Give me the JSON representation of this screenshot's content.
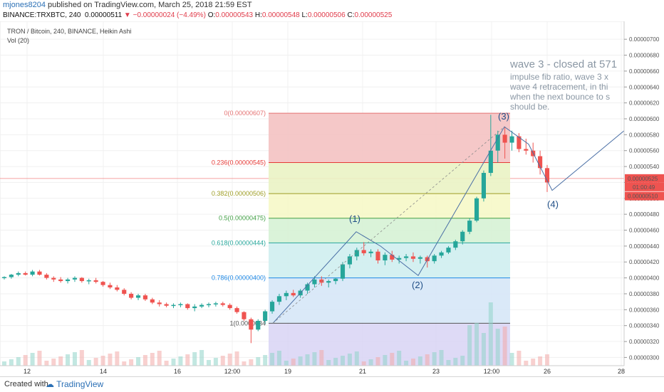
{
  "header": {
    "user": "mjones8204",
    "published": " published on TradingView.com, March 25, 2018 21:59 EST",
    "symbol": "BINANCE:TRXBTC, 240",
    "last": "0.00000511",
    "change": "▼ −0.00000024 (−4.49%)",
    "o_label": "O:",
    "o": "0.00000543",
    "h_label": "H:",
    "h": "0.00000548",
    "l_label": "L:",
    "l": "0.00000506",
    "c_label": "C:",
    "c": "0.00000525"
  },
  "pane": {
    "title": "TRON / Bitcoin, 240, BINANCE, Heikin Ashi",
    "volume": "Vol (20)"
  },
  "footer": {
    "created_with": "Created with",
    "logo": "TradingView"
  },
  "colors": {
    "up": "#26a69a",
    "down": "#ef5350",
    "accent": "#2a6fb5"
  },
  "chart_data": {
    "type": "candlestick",
    "title": "TRON / Bitcoin, 240, BINANCE, Heikin Ashi",
    "ylim": [
      2.95e-06,
      7.1e-06
    ],
    "y_ticks": [
      "0.00000300",
      "0.00000320",
      "0.00000340",
      "0.00000360",
      "0.00000380",
      "0.00000400",
      "0.00000420",
      "0.00000440",
      "0.00000460",
      "0.00000480",
      "0.00000500",
      "0.00000520",
      "0.00000540",
      "0.00000560",
      "0.00000580",
      "0.00000600",
      "0.00000620",
      "0.00000640",
      "0.00000660",
      "0.00000680",
      "0.00000700"
    ],
    "x_ticks": [
      "12",
      "14",
      "16",
      "12:00",
      "19",
      "21",
      "23",
      "12:00",
      "26",
      "28"
    ],
    "price_marker": "0.00000525",
    "countdown": "01:00:49",
    "close_marker": "0.00000510",
    "fib_levels": [
      {
        "label": "0(0.00000607)",
        "value": 607,
        "color": "#e57373"
      },
      {
        "label": "0.236(0.00000545)",
        "value": 545,
        "color": "#e53935"
      },
      {
        "label": "0.382(0.00000506)",
        "value": 506,
        "color": "#9e9d24"
      },
      {
        "label": "0.5(0.00000475)",
        "value": 475,
        "color": "#43a047"
      },
      {
        "label": "0.618(0.00000444)",
        "value": 444,
        "color": "#26a69a"
      },
      {
        "label": "0.786(0.00000400)",
        "value": 400,
        "color": "#1e88e5"
      },
      {
        "label": "1(0.0000034",
        "value": 343,
        "color": "#555555"
      }
    ],
    "wave_labels": [
      "(1)",
      "(2)",
      "(3)",
      "(4)"
    ],
    "wave_path": [
      [
        -16,
        343
      ],
      [
        -4,
        458
      ],
      [
        0,
        440
      ],
      [
        6,
        403
      ],
      [
        12,
        590
      ],
      [
        14,
        568
      ],
      [
        16,
        510
      ],
      [
        21,
        585
      ]
    ],
    "candles": [
      [
        400,
        402,
        398,
        401
      ],
      [
        401,
        405,
        399,
        404
      ],
      [
        404,
        408,
        402,
        406
      ],
      [
        406,
        408,
        403,
        404
      ],
      [
        404,
        410,
        402,
        408
      ],
      [
        408,
        410,
        403,
        404
      ],
      [
        404,
        406,
        398,
        400
      ],
      [
        400,
        402,
        395,
        398
      ],
      [
        398,
        401,
        394,
        396
      ],
      [
        396,
        400,
        393,
        398
      ],
      [
        398,
        402,
        395,
        400
      ],
      [
        400,
        401,
        394,
        396
      ],
      [
        396,
        399,
        392,
        397
      ],
      [
        397,
        400,
        393,
        395
      ],
      [
        395,
        396,
        389,
        391
      ],
      [
        391,
        394,
        386,
        388
      ],
      [
        388,
        391,
        383,
        385
      ],
      [
        385,
        387,
        378,
        380
      ],
      [
        380,
        382,
        373,
        375
      ],
      [
        375,
        380,
        372,
        378
      ],
      [
        378,
        380,
        371,
        373
      ],
      [
        373,
        375,
        367,
        369
      ],
      [
        369,
        372,
        364,
        367
      ],
      [
        367,
        369,
        363,
        365
      ],
      [
        365,
        368,
        362,
        366
      ],
      [
        366,
        369,
        363,
        367
      ],
      [
        367,
        368,
        360,
        362
      ],
      [
        362,
        367,
        358,
        364
      ],
      [
        364,
        368,
        362,
        366
      ],
      [
        366,
        369,
        363,
        367
      ],
      [
        367,
        370,
        364,
        368
      ],
      [
        368,
        370,
        364,
        366
      ],
      [
        366,
        368,
        360,
        362
      ],
      [
        362,
        364,
        355,
        357
      ],
      [
        357,
        358,
        346,
        348
      ],
      [
        348,
        350,
        318,
        335
      ],
      [
        335,
        348,
        333,
        346
      ],
      [
        346,
        360,
        342,
        358
      ],
      [
        358,
        372,
        355,
        370
      ],
      [
        370,
        380,
        366,
        377
      ],
      [
        377,
        384,
        372,
        381
      ],
      [
        381,
        385,
        376,
        378
      ],
      [
        378,
        386,
        375,
        384
      ],
      [
        384,
        394,
        380,
        392
      ],
      [
        392,
        402,
        388,
        398
      ],
      [
        398,
        402,
        390,
        394
      ],
      [
        394,
        398,
        388,
        396
      ],
      [
        396,
        400,
        392,
        399
      ],
      [
        399,
        420,
        396,
        417
      ],
      [
        417,
        430,
        412,
        427
      ],
      [
        427,
        438,
        422,
        435
      ],
      [
        435,
        445,
        428,
        431
      ],
      [
        431,
        436,
        426,
        433
      ],
      [
        433,
        436,
        418,
        422
      ],
      [
        422,
        432,
        416,
        429
      ],
      [
        429,
        434,
        420,
        423
      ],
      [
        423,
        428,
        418,
        425
      ],
      [
        425,
        430,
        421,
        427
      ],
      [
        427,
        432,
        420,
        424
      ],
      [
        424,
        428,
        418,
        426
      ],
      [
        426,
        428,
        413,
        421
      ],
      [
        421,
        430,
        418,
        428
      ],
      [
        428,
        434,
        425,
        432
      ],
      [
        432,
        440,
        430,
        438
      ],
      [
        438,
        448,
        435,
        446
      ],
      [
        446,
        460,
        442,
        458
      ],
      [
        458,
        475,
        455,
        472
      ],
      [
        472,
        502,
        470,
        500
      ],
      [
        500,
        535,
        496,
        532
      ],
      [
        532,
        605,
        528,
        560
      ],
      [
        560,
        585,
        545,
        580
      ],
      [
        580,
        590,
        550,
        570
      ],
      [
        570,
        585,
        560,
        578
      ],
      [
        578,
        582,
        558,
        562
      ],
      [
        562,
        575,
        555,
        560
      ],
      [
        560,
        570,
        545,
        553
      ],
      [
        553,
        560,
        530,
        538
      ],
      [
        538,
        542,
        508,
        520
      ]
    ]
  }
}
